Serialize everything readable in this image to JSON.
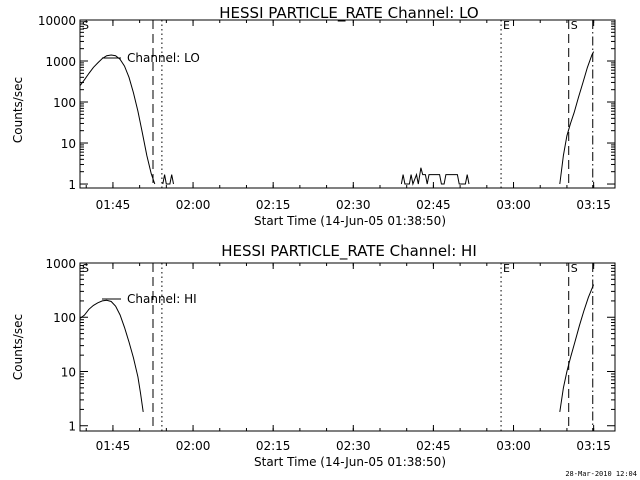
{
  "footer_timestamp": "28-Mar-2010 12:04",
  "chart_data": [
    {
      "type": "line",
      "title": "HESSI PARTICLE_RATE Channel: LO",
      "xlabel": "Start Time (14-Jun-05 01:38:50)",
      "ylabel": "Counts/sec",
      "yscale": "log",
      "xlim": [
        "01:38:50",
        "03:19:00"
      ],
      "ylim": [
        0.8,
        10000
      ],
      "x_ticks": [
        "01:45",
        "02:00",
        "02:15",
        "02:30",
        "02:45",
        "03:00",
        "03:15"
      ],
      "y_ticks": [
        "1",
        "10",
        "100",
        "1000",
        "10000"
      ],
      "legend": "Channel: LO",
      "markers": [
        {
          "label": "S",
          "time": "01:38:50",
          "style": "none"
        },
        {
          "label": "",
          "time": "01:52:30",
          "style": "dashed"
        },
        {
          "label": "",
          "time": "01:54:10",
          "style": "dotted"
        },
        {
          "label": "E",
          "time": "02:57:40",
          "style": "dotted"
        },
        {
          "label": "S",
          "time": "03:10:20",
          "style": "dashed"
        },
        {
          "label": "",
          "time": "03:14:50",
          "style": "dashdot"
        }
      ],
      "series": [
        {
          "values": [
            [
              "01:38:50",
              250
            ],
            [
              "01:39:40",
              350
            ],
            [
              "01:40:30",
              500
            ],
            [
              "01:41:20",
              700
            ],
            [
              "01:42:10",
              900
            ],
            [
              "01:43:00",
              1150
            ],
            [
              "01:43:50",
              1350
            ],
            [
              "01:44:40",
              1400
            ],
            [
              "01:45:30",
              1350
            ],
            [
              "01:46:20",
              1100
            ],
            [
              "01:47:10",
              750
            ],
            [
              "01:48:00",
              400
            ],
            [
              "01:48:50",
              170
            ],
            [
              "01:49:40",
              60
            ],
            [
              "01:50:30",
              18
            ],
            [
              "01:51:20",
              5
            ],
            [
              "01:52:10",
              1.8
            ],
            [
              "01:52:50",
              1
            ]
          ]
        },
        {
          "values": [
            [
              "01:54:20",
              1
            ],
            [
              "01:54:40",
              1.7
            ],
            [
              "01:55:00",
              1
            ],
            [
              "01:55:40",
              1
            ],
            [
              "01:56:00",
              1.7
            ],
            [
              "01:56:20",
              1
            ]
          ]
        },
        {
          "values": [
            [
              "02:39:00",
              1
            ],
            [
              "02:39:20",
              1.7
            ],
            [
              "02:39:40",
              1
            ],
            [
              "02:40:30",
              1
            ],
            [
              "02:40:50",
              1.7
            ],
            [
              "02:41:10",
              1
            ],
            [
              "02:41:50",
              1.7
            ],
            [
              "02:42:10",
              1
            ],
            [
              "02:42:40",
              2.5
            ],
            [
              "02:43:00",
              1.7
            ],
            [
              "02:43:30",
              1.7
            ],
            [
              "02:43:50",
              1
            ],
            [
              "02:44:10",
              1.7
            ],
            [
              "02:46:10",
              1.7
            ],
            [
              "02:46:30",
              1
            ],
            [
              "02:47:00",
              1
            ],
            [
              "02:47:20",
              1.7
            ],
            [
              "02:49:30",
              1.7
            ],
            [
              "02:49:50",
              1
            ],
            [
              "02:51:00",
              1
            ],
            [
              "02:51:20",
              1.7
            ],
            [
              "02:51:40",
              1
            ]
          ]
        },
        {
          "values": [
            [
              "03:08:40",
              1
            ],
            [
              "03:09:20",
              5
            ],
            [
              "03:10:00",
              15
            ],
            [
              "03:10:40",
              30
            ],
            [
              "03:11:20",
              55
            ],
            [
              "03:12:10",
              130
            ],
            [
              "03:13:00",
              300
            ],
            [
              "03:13:50",
              700
            ],
            [
              "03:14:40",
              1400
            ],
            [
              "03:15:00",
              1700
            ]
          ]
        }
      ]
    },
    {
      "type": "line",
      "title": "HESSI PARTICLE_RATE Channel: HI",
      "xlabel": "Start Time (14-Jun-05 01:38:50)",
      "ylabel": "Counts/sec",
      "yscale": "log",
      "xlim": [
        "01:38:50",
        "03:19:00"
      ],
      "ylim": [
        0.8,
        1000
      ],
      "x_ticks": [
        "01:45",
        "02:00",
        "02:15",
        "02:30",
        "02:45",
        "03:00",
        "03:15"
      ],
      "y_ticks": [
        "1",
        "10",
        "100",
        "1000"
      ],
      "legend": "Channel: HI",
      "markers": [
        {
          "label": "S",
          "time": "01:38:50",
          "style": "none"
        },
        {
          "label": "",
          "time": "01:52:30",
          "style": "dashed"
        },
        {
          "label": "",
          "time": "01:54:10",
          "style": "dotted"
        },
        {
          "label": "E",
          "time": "02:57:40",
          "style": "dotted"
        },
        {
          "label": "S",
          "time": "03:10:20",
          "style": "dashed"
        },
        {
          "label": "",
          "time": "03:14:50",
          "style": "dashdot"
        }
      ],
      "series": [
        {
          "values": [
            [
              "01:38:50",
              95
            ],
            [
              "01:39:40",
              110
            ],
            [
              "01:40:30",
              140
            ],
            [
              "01:41:20",
              165
            ],
            [
              "01:42:10",
              185
            ],
            [
              "01:43:00",
              200
            ],
            [
              "01:43:50",
              205
            ],
            [
              "01:44:40",
              195
            ],
            [
              "01:45:30",
              160
            ],
            [
              "01:46:20",
              110
            ],
            [
              "01:47:10",
              65
            ],
            [
              "01:48:00",
              35
            ],
            [
              "01:48:50",
              18
            ],
            [
              "01:49:40",
              8
            ],
            [
              "01:50:10",
              4
            ],
            [
              "01:50:40",
              1.8
            ]
          ]
        },
        {
          "values": [
            [
              "03:08:40",
              1.8
            ],
            [
              "03:09:20",
              5
            ],
            [
              "03:10:00",
              10
            ],
            [
              "03:10:40",
              18
            ],
            [
              "03:11:30",
              35
            ],
            [
              "03:12:20",
              70
            ],
            [
              "03:13:10",
              130
            ],
            [
              "03:14:00",
              230
            ],
            [
              "03:15:00",
              400
            ]
          ]
        }
      ]
    }
  ]
}
